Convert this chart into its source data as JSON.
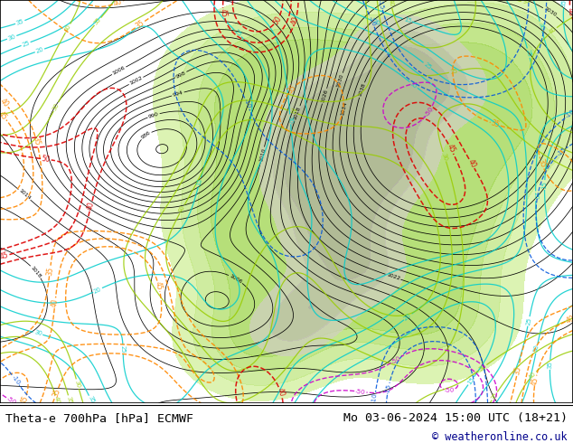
{
  "title_left": "Theta-e 700hPa [hPa] ECMWF",
  "title_right": "Mo 03-06-2024 15:00 UTC (18+21)",
  "copyright": "© weatheronline.co.uk",
  "bg_color": "#ffffff",
  "footer_bg": "#ffffff",
  "title_color": "#000000",
  "copyright_color": "#00008b",
  "figsize": [
    6.34,
    4.9
  ],
  "dpi": 100
}
